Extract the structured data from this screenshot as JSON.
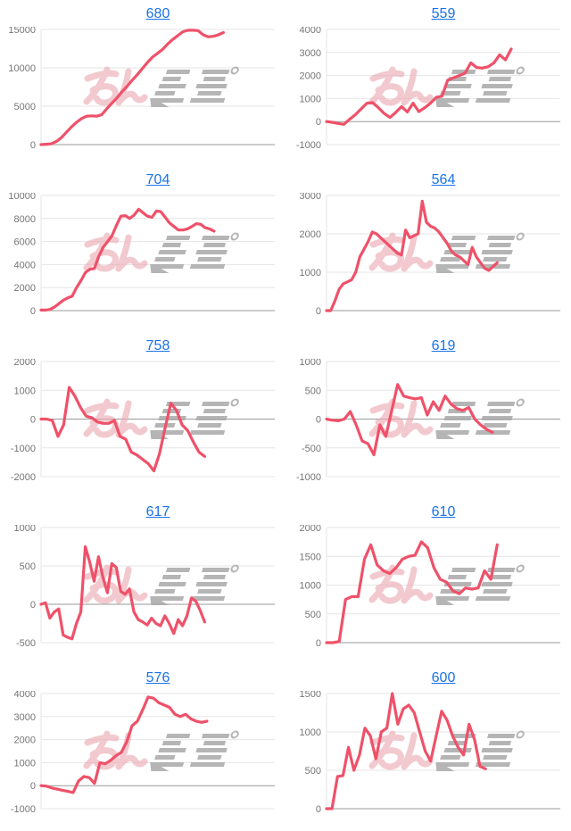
{
  "page": {
    "background": "#ffffff"
  },
  "colors": {
    "line": "#ef5169",
    "grid": "#e6e6e6",
    "zero_axis": "#9a9a9a",
    "tick_label": "#757575",
    "title_link": "#1a73e8",
    "watermark_pink": "#eba9b1",
    "watermark_gray": "#a9a9a9"
  },
  "watermark": {
    "text": "みんレポ",
    "part_pink": "みん",
    "part_gray": "レポ"
  },
  "chart_data": [
    {
      "type": "line",
      "title": "680",
      "ylabel": "",
      "xlabel": "",
      "ylim": [
        0,
        15000
      ],
      "ytick_step": 5000,
      "grid": true,
      "legend": "none",
      "x_span_frac": 0.78,
      "values": [
        0,
        50,
        100,
        400,
        900,
        1600,
        2300,
        2900,
        3400,
        3700,
        3750,
        3700,
        3900,
        4700,
        5400,
        6100,
        6900,
        7600,
        8400,
        9100,
        9900,
        10700,
        11400,
        11900,
        12400,
        13100,
        13700,
        14200,
        14700,
        14900,
        14900,
        14850,
        14300,
        14050,
        14100,
        14300,
        14600
      ]
    },
    {
      "type": "line",
      "title": "559",
      "ylabel": "",
      "xlabel": "",
      "ylim": [
        -1000,
        4000
      ],
      "ytick_step": 1000,
      "grid": true,
      "legend": "none",
      "x_span_frac": 0.79,
      "values": [
        0,
        -30,
        -80,
        -120,
        100,
        300,
        550,
        800,
        820,
        600,
        350,
        180,
        400,
        650,
        420,
        800,
        430,
        600,
        800,
        1050,
        1100,
        1800,
        1900,
        2000,
        2100,
        2550,
        2350,
        2320,
        2380,
        2550,
        2900,
        2680,
        3150
      ]
    },
    {
      "type": "line",
      "title": "704",
      "ylabel": "",
      "xlabel": "",
      "ylim": [
        0,
        10000
      ],
      "ytick_step": 2000,
      "grid": true,
      "legend": "none",
      "x_span_frac": 0.74,
      "values": [
        50,
        50,
        100,
        300,
        600,
        900,
        1100,
        1250,
        2000,
        2600,
        3300,
        3600,
        3650,
        4700,
        5500,
        6000,
        6500,
        7400,
        8200,
        8250,
        8000,
        8300,
        8800,
        8500,
        8200,
        8100,
        8650,
        8600,
        8100,
        7600,
        7300,
        7000,
        7000,
        7100,
        7300,
        7550,
        7500,
        7200,
        7100,
        6900
      ]
    },
    {
      "type": "line",
      "title": "564",
      "ylabel": "",
      "xlabel": "",
      "ylim": [
        0,
        3000
      ],
      "ytick_step": 1000,
      "grid": true,
      "legend": "none",
      "x_span_frac": 0.73,
      "values": [
        0,
        0,
        250,
        550,
        700,
        750,
        800,
        1000,
        1400,
        1600,
        1800,
        2050,
        2000,
        1900,
        1800,
        1700,
        1600,
        1500,
        1450,
        2100,
        1900,
        1950,
        2000,
        2850,
        2300,
        2200,
        2150,
        2050,
        1900,
        1750,
        1550,
        1450,
        1400,
        1300,
        1200,
        1650,
        1400,
        1250,
        1100,
        1050,
        1150,
        1250
      ]
    },
    {
      "type": "line",
      "title": "758",
      "ylabel": "",
      "xlabel": "",
      "ylim": [
        -2000,
        2000
      ],
      "ytick_step": 1000,
      "grid": true,
      "legend": "none",
      "x_span_frac": 0.7,
      "values": [
        0,
        0,
        -50,
        -600,
        -200,
        1100,
        800,
        400,
        100,
        50,
        -100,
        -150,
        -150,
        -50,
        -600,
        -700,
        -1150,
        -1250,
        -1400,
        -1550,
        -1800,
        -1200,
        -300,
        550,
        300,
        -200,
        -400,
        -800,
        -1150,
        -1300
      ]
    },
    {
      "type": "line",
      "title": "619",
      "ylabel": "",
      "xlabel": "",
      "ylim": [
        -1000,
        1000
      ],
      "ytick_step": 500,
      "grid": true,
      "legend": "none",
      "x_span_frac": 0.71,
      "values": [
        0,
        -20,
        -30,
        0,
        130,
        -100,
        -380,
        -430,
        -620,
        -100,
        -300,
        150,
        600,
        400,
        370,
        350,
        370,
        70,
        300,
        150,
        400,
        260,
        180,
        150,
        200,
        0,
        -100,
        -180,
        -230
      ]
    },
    {
      "type": "line",
      "title": "617",
      "ylabel": "",
      "xlabel": "",
      "ylim": [
        -500,
        1000
      ],
      "ytick_step": 500,
      "grid": true,
      "legend": "none",
      "x_span_frac": 0.7,
      "values": [
        0,
        20,
        -180,
        -100,
        -60,
        -400,
        -430,
        -450,
        -250,
        -100,
        750,
        550,
        300,
        620,
        350,
        150,
        530,
        480,
        170,
        130,
        200,
        -100,
        -200,
        -230,
        -270,
        -180,
        -250,
        -280,
        -150,
        -250,
        -380,
        -200,
        -280,
        -150,
        80,
        40,
        -80,
        -230
      ]
    },
    {
      "type": "line",
      "title": "610",
      "ylabel": "",
      "xlabel": "",
      "ylim": [
        0,
        2000
      ],
      "ytick_step": 500,
      "grid": true,
      "legend": "none",
      "x_span_frac": 0.73,
      "values": [
        0,
        0,
        20,
        750,
        800,
        800,
        1450,
        1700,
        1350,
        1250,
        1200,
        1300,
        1450,
        1500,
        1520,
        1750,
        1650,
        1300,
        1100,
        1050,
        900,
        850,
        950,
        930,
        950,
        1250,
        1100,
        1700
      ]
    },
    {
      "type": "line",
      "title": "576",
      "ylabel": "",
      "xlabel": "",
      "ylim": [
        -1000,
        4000
      ],
      "ytick_step": 1000,
      "grid": true,
      "legend": "none",
      "x_span_frac": 0.71,
      "values": [
        0,
        -20,
        -100,
        -150,
        -200,
        -250,
        -300,
        200,
        400,
        350,
        100,
        1000,
        950,
        1100,
        1300,
        1450,
        1900,
        2600,
        2800,
        3300,
        3850,
        3800,
        3600,
        3500,
        3400,
        3100,
        3000,
        3100,
        2900,
        2800,
        2750,
        2800
      ]
    },
    {
      "type": "line",
      "title": "600",
      "ylabel": "",
      "xlabel": "",
      "ylim": [
        0,
        1500
      ],
      "ytick_step": 500,
      "grid": true,
      "legend": "none",
      "x_span_frac": 0.68,
      "values": [
        0,
        0,
        420,
        430,
        800,
        500,
        700,
        1050,
        950,
        650,
        1000,
        1050,
        1500,
        1100,
        1300,
        1350,
        1250,
        1000,
        750,
        620,
        950,
        1270,
        1150,
        950,
        800,
        700,
        1100,
        900,
        550,
        520
      ]
    }
  ]
}
